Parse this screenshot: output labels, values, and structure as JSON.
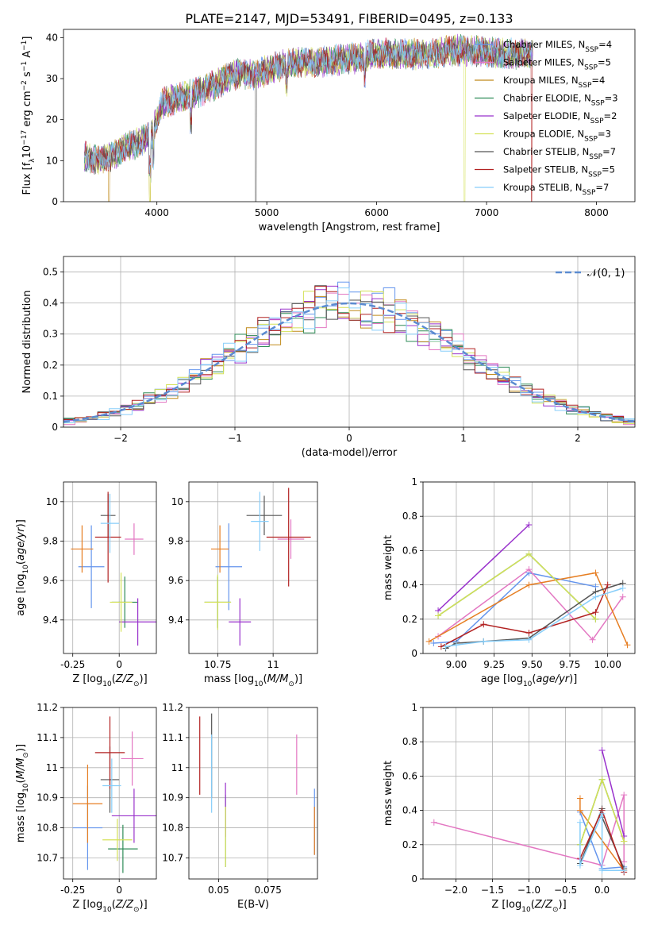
{
  "title": "PLATE=2147, MJD=53491, FIBERID=0495, z=0.133",
  "legend_entries": [
    {
      "label": "Chabrier MILES, N",
      "sub": "SSP",
      "suffix": "=4",
      "color": "#6495ed"
    },
    {
      "label": "Salpeter MILES, N",
      "sub": "SSP",
      "suffix": "=5",
      "color": "#e377c2"
    },
    {
      "label": "Kroupa MILES, N",
      "sub": "SSP",
      "suffix": "=4",
      "color": "#c08a1a"
    },
    {
      "label": "Chabrier ELODIE, N",
      "sub": "SSP",
      "suffix": "=3",
      "color": "#2e8b57"
    },
    {
      "label": "Salpeter ELODIE, N",
      "sub": "SSP",
      "suffix": "=2",
      "color": "#9932cc"
    },
    {
      "label": "Kroupa ELODIE, N",
      "sub": "SSP",
      "suffix": "=3",
      "color": "#d4e157"
    },
    {
      "label": "Chabrier STELIB, N",
      "sub": "SSP",
      "suffix": "=7",
      "color": "#555555"
    },
    {
      "label": "Salpeter STELIB, N",
      "sub": "SSP",
      "suffix": "=5",
      "color": "#b22222"
    },
    {
      "label": "Kroupa STELIB, N",
      "sub": "SSP",
      "suffix": "=7",
      "color": "#87cefa"
    }
  ],
  "normal_label": "𝒩(0, 1)",
  "chart_data": [
    {
      "id": "spectrum",
      "type": "line",
      "title": "PLATE=2147, MJD=53491, FIBERID=0495, z=0.133",
      "xlabel": "wavelength [Angstrom, rest frame]",
      "ylabel": "Flux [f",
      "xlim": [
        3150,
        8350
      ],
      "ylim": [
        0,
        42
      ],
      "xticks": [
        4000,
        5000,
        6000,
        7000,
        8000
      ],
      "yticks": [
        0,
        10,
        20,
        30,
        40
      ],
      "continuum": [
        [
          3340,
          11
        ],
        [
          3500,
          10
        ],
        [
          3700,
          13
        ],
        [
          3800,
          14
        ],
        [
          3950,
          16
        ],
        [
          4050,
          24
        ],
        [
          4300,
          26
        ],
        [
          4500,
          28
        ],
        [
          4700,
          31
        ],
        [
          4900,
          31
        ],
        [
          5100,
          33
        ],
        [
          5300,
          34
        ],
        [
          5500,
          34
        ],
        [
          5800,
          35
        ],
        [
          6000,
          36
        ],
        [
          6200,
          36
        ],
        [
          6500,
          36
        ],
        [
          6700,
          37
        ],
        [
          7000,
          36.5
        ],
        [
          7200,
          36
        ],
        [
          7400,
          36
        ]
      ],
      "drops": [
        {
          "series": "Kroupa MILES",
          "wavelength": [
            3565,
            3935
          ]
        },
        {
          "series": "Kroupa ELODIE",
          "wavelength": [
            3935,
            6800
          ]
        },
        {
          "series": "Salpeter STELIB",
          "wavelength": [
            7410
          ]
        },
        {
          "series": "Chabrier STELIB",
          "wavelength": [
            4900
          ]
        }
      ]
    },
    {
      "id": "residuals",
      "type": "histogram",
      "xlabel": "(data-model)/error",
      "ylabel": "Normed distribution",
      "xlim": [
        -2.5,
        2.5
      ],
      "ylim": [
        0,
        0.55
      ],
      "xticks": [
        -2,
        -1,
        0,
        1,
        2
      ],
      "yticks": [
        0.0,
        0.1,
        0.2,
        0.3,
        0.4,
        0.5
      ],
      "bin_width": 0.1,
      "series": [
        {
          "name": "N(0,1)",
          "type": "gaussian",
          "mean": 0,
          "sigma": 1
        }
      ]
    },
    {
      "id": "age_vs_Z",
      "type": "errorbar",
      "xlabel": "Z [log",
      "ylabel": "age  [log",
      "xlim": [
        -0.3,
        0.2
      ],
      "ylim": [
        9.23,
        10.1
      ],
      "xticks": [
        -0.25,
        0.0
      ],
      "yticks": [
        9.4,
        9.6,
        9.8,
        10.0
      ],
      "points": [
        {
          "x": -0.15,
          "y": 9.67,
          "xerr": 0.07,
          "yerr": 0.21,
          "color": "#6495ed"
        },
        {
          "x": 0.08,
          "y": 9.81,
          "xerr": 0.05,
          "yerr": 0.08,
          "color": "#e377c2"
        },
        {
          "x": -0.2,
          "y": 9.76,
          "xerr": 0.06,
          "yerr": 0.12,
          "color": "#e67e22"
        },
        {
          "x": 0.03,
          "y": 9.49,
          "xerr": 0.07,
          "yerr": 0.13,
          "color": "#2e8b57"
        },
        {
          "x": 0.1,
          "y": 9.39,
          "xerr": 0.1,
          "yerr": 0.12,
          "color": "#9932cc"
        },
        {
          "x": 0.01,
          "y": 9.49,
          "xerr": 0.06,
          "yerr": 0.15,
          "color": "#d4e157"
        },
        {
          "x": -0.06,
          "y": 9.93,
          "xerr": 0.04,
          "yerr": 0.11,
          "color": "#555555"
        },
        {
          "x": -0.06,
          "y": 9.82,
          "xerr": 0.07,
          "yerr": 0.23,
          "color": "#b22222"
        },
        {
          "x": -0.05,
          "y": 9.89,
          "xerr": 0.05,
          "yerr": 0.15,
          "color": "#87cefa"
        }
      ]
    },
    {
      "id": "age_vs_mass",
      "type": "errorbar",
      "xlabel": "mass [log",
      "ylabel": "",
      "xlim": [
        10.62,
        11.2
      ],
      "ylim": [
        9.23,
        10.1
      ],
      "xticks": [
        10.75,
        11.0
      ],
      "yticks": [
        9.4,
        9.6,
        9.8,
        10.0
      ],
      "points": [
        {
          "x": 10.8,
          "y": 9.67,
          "xerr": 0.06,
          "yerr": 0.22,
          "color": "#6495ed"
        },
        {
          "x": 11.08,
          "y": 9.81,
          "xerr": 0.06,
          "yerr": 0.1,
          "color": "#e377c2"
        },
        {
          "x": 10.76,
          "y": 9.76,
          "xerr": 0.04,
          "yerr": 0.12,
          "color": "#e67e22"
        },
        {
          "x": 10.75,
          "y": 9.49,
          "xerr": 0.06,
          "yerr": 0.13,
          "color": "#2e8b57"
        },
        {
          "x": 10.85,
          "y": 9.39,
          "xerr": 0.05,
          "yerr": 0.12,
          "color": "#9932cc"
        },
        {
          "x": 10.75,
          "y": 9.49,
          "xerr": 0.06,
          "yerr": 0.14,
          "color": "#d4e157"
        },
        {
          "x": 10.96,
          "y": 9.93,
          "xerr": 0.08,
          "yerr": 0.1,
          "color": "#555555"
        },
        {
          "x": 11.07,
          "y": 9.82,
          "xerr": 0.1,
          "yerr": 0.25,
          "color": "#b22222"
        },
        {
          "x": 10.94,
          "y": 9.9,
          "xerr": 0.04,
          "yerr": 0.15,
          "color": "#87cefa"
        }
      ]
    },
    {
      "id": "weight_vs_age",
      "type": "line",
      "xlabel": "age  [log",
      "ylabel": "mass weight",
      "xlim": [
        8.78,
        10.18
      ],
      "ylim": [
        0,
        1
      ],
      "xticks": [
        9.0,
        9.25,
        9.5,
        9.75,
        10.0
      ],
      "yticks": [
        0.0,
        0.2,
        0.4,
        0.6,
        0.8,
        1.0
      ],
      "series": [
        {
          "name": "Chabrier MILES",
          "color": "#6495ed",
          "x": [
            8.85,
            9.0,
            9.48,
            9.92
          ],
          "y": [
            0.06,
            0.07,
            0.47,
            0.39
          ]
        },
        {
          "name": "Salpeter MILES",
          "color": "#e377c2",
          "x": [
            8.88,
            9.48,
            9.9,
            10.1
          ],
          "y": [
            0.1,
            0.49,
            0.08,
            0.33
          ]
        },
        {
          "name": "Kroupa MILES",
          "color": "#e67e22",
          "x": [
            8.82,
            9.48,
            9.92,
            10.13
          ],
          "y": [
            0.07,
            0.4,
            0.47,
            0.05
          ]
        },
        {
          "name": "Chabrier ELODIE",
          "color": "#2e8b57",
          "x": [
            8.88,
            9.48,
            9.92
          ],
          "y": [
            0.22,
            0.58,
            0.2
          ]
        },
        {
          "name": "Salpeter ELODIE",
          "color": "#9932cc",
          "x": [
            8.88,
            9.48
          ],
          "y": [
            0.25,
            0.75
          ]
        },
        {
          "name": "Kroupa ELODIE",
          "color": "#d4e157",
          "x": [
            8.88,
            9.48,
            9.92
          ],
          "y": [
            0.22,
            0.58,
            0.2
          ]
        },
        {
          "name": "Chabrier STELIB",
          "color": "#555555",
          "x": [
            8.93,
            9.0,
            9.18,
            9.48,
            9.92,
            10.1
          ],
          "y": [
            0.03,
            0.06,
            0.07,
            0.09,
            0.36,
            0.41
          ]
        },
        {
          "name": "Salpeter STELIB",
          "color": "#b22222",
          "x": [
            8.9,
            9.18,
            9.48,
            9.92,
            10.0
          ],
          "y": [
            0.04,
            0.17,
            0.12,
            0.24,
            0.4
          ]
        },
        {
          "name": "Kroupa STELIB",
          "color": "#87cefa",
          "x": [
            8.93,
            9.0,
            9.18,
            9.48,
            9.92,
            10.1
          ],
          "y": [
            0.04,
            0.05,
            0.07,
            0.08,
            0.33,
            0.38
          ]
        }
      ]
    },
    {
      "id": "mass_vs_Z",
      "type": "errorbar",
      "xlabel": "Z [log",
      "ylabel": "mass [log",
      "xlim": [
        -0.3,
        0.2
      ],
      "ylim": [
        10.63,
        11.2
      ],
      "xticks": [
        -0.25,
        0.0
      ],
      "yticks": [
        10.7,
        10.8,
        10.9,
        11.0,
        11.1,
        11.2
      ],
      "points": [
        {
          "x": -0.17,
          "y": 10.8,
          "xerr": 0.08,
          "yerr": 0.14,
          "color": "#6495ed"
        },
        {
          "x": 0.07,
          "y": 11.03,
          "xerr": 0.06,
          "yerr": 0.09,
          "color": "#e377c2"
        },
        {
          "x": -0.17,
          "y": 10.88,
          "xerr": 0.08,
          "yerr": 0.13,
          "color": "#e67e22"
        },
        {
          "x": 0.02,
          "y": 10.73,
          "xerr": 0.08,
          "yerr": 0.08,
          "color": "#2e8b57"
        },
        {
          "x": 0.08,
          "y": 10.84,
          "xerr": 0.12,
          "yerr": 0.09,
          "color": "#9932cc"
        },
        {
          "x": -0.01,
          "y": 10.76,
          "xerr": 0.08,
          "yerr": 0.07,
          "color": "#d4e157"
        },
        {
          "x": -0.05,
          "y": 10.96,
          "xerr": 0.05,
          "yerr": 0.11,
          "color": "#555555"
        },
        {
          "x": -0.05,
          "y": 11.05,
          "xerr": 0.08,
          "yerr": 0.12,
          "color": "#b22222"
        },
        {
          "x": -0.04,
          "y": 10.94,
          "xerr": 0.05,
          "yerr": 0.09,
          "color": "#87cefa"
        }
      ]
    },
    {
      "id": "mass_vs_EBV",
      "type": "errorbar",
      "xlabel": "E(B-V)",
      "ylabel": "",
      "xlim": [
        0.035,
        0.1
      ],
      "ylim": [
        10.63,
        11.2
      ],
      "xticks": [
        0.05,
        0.075
      ],
      "yticks": [
        10.7,
        10.8,
        10.9,
        11.0,
        11.1,
        11.2
      ],
      "points": [
        {
          "x": 0.0985,
          "y": 10.82,
          "xerr": 0,
          "yerr": 0.11,
          "color": "#6495ed"
        },
        {
          "x": 0.0895,
          "y": 11.01,
          "xerr": 0,
          "yerr": 0.1,
          "color": "#e377c2"
        },
        {
          "x": 0.0985,
          "y": 10.79,
          "xerr": 0,
          "yerr": 0.08,
          "color": "#e67e22"
        },
        {
          "x": 0.0535,
          "y": 10.79,
          "xerr": 0,
          "yerr": 0.12,
          "color": "#2e8b57"
        },
        {
          "x": 0.0535,
          "y": 10.86,
          "xerr": 0,
          "yerr": 0.09,
          "color": "#9932cc"
        },
        {
          "x": 0.0535,
          "y": 10.77,
          "xerr": 0,
          "yerr": 0.1,
          "color": "#d4e157"
        },
        {
          "x": 0.0465,
          "y": 11.04,
          "xerr": 0,
          "yerr": 0.14,
          "color": "#555555"
        },
        {
          "x": 0.0405,
          "y": 11.04,
          "xerr": 0,
          "yerr": 0.13,
          "color": "#b22222"
        },
        {
          "x": 0.0465,
          "y": 10.98,
          "xerr": 0,
          "yerr": 0.13,
          "color": "#87cefa"
        }
      ]
    },
    {
      "id": "weight_vs_Z",
      "type": "line",
      "xlabel": "Z [log",
      "ylabel": "mass weight",
      "xlim": [
        -2.45,
        0.45
      ],
      "ylim": [
        0,
        1
      ],
      "xticks": [
        -2.0,
        -1.5,
        -1.0,
        -0.5,
        0.0
      ],
      "yticks": [
        0.0,
        0.2,
        0.4,
        0.6,
        0.8,
        1.0
      ],
      "series": [
        {
          "name": "Chabrier MILES",
          "color": "#6495ed",
          "x": [
            -0.3,
            0.0,
            0.3
          ],
          "y": [
            0.39,
            0.06,
            0.07
          ]
        },
        {
          "name": "Salpeter MILES",
          "color": "#e377c2",
          "x": [
            -2.3,
            0.0,
            0.3,
            0.3
          ],
          "y": [
            0.33,
            0.08,
            0.49,
            0.1
          ]
        },
        {
          "name": "Kroupa MILES",
          "color": "#e67e22",
          "x": [
            -0.3,
            -0.3,
            0.3
          ],
          "y": [
            0.47,
            0.4,
            0.05
          ]
        },
        {
          "name": "Chabrier ELODIE",
          "color": "#2e8b57",
          "x": [
            -0.3,
            0.0,
            0.3
          ],
          "y": [
            0.2,
            0.58,
            0.22
          ]
        },
        {
          "name": "Salpeter ELODIE",
          "color": "#9932cc",
          "x": [
            0.0,
            0.3
          ],
          "y": [
            0.75,
            0.25
          ]
        },
        {
          "name": "Kroupa ELODIE",
          "color": "#d4e157",
          "x": [
            -0.3,
            0.0,
            0.3
          ],
          "y": [
            0.2,
            0.58,
            0.22
          ]
        },
        {
          "name": "Chabrier STELIB",
          "color": "#555555",
          "x": [
            -0.3,
            0.0,
            0.0,
            0.3
          ],
          "y": [
            0.09,
            0.41,
            0.36,
            0.06
          ]
        },
        {
          "name": "Salpeter STELIB",
          "color": "#b22222",
          "x": [
            -0.3,
            0.0,
            0.3
          ],
          "y": [
            0.12,
            0.4,
            0.04
          ]
        },
        {
          "name": "Kroupa STELIB",
          "color": "#87cefa",
          "x": [
            -0.3,
            -0.3,
            0.0,
            0.0,
            0.3
          ],
          "y": [
            0.33,
            0.08,
            0.38,
            0.05,
            0.05
          ]
        }
      ]
    }
  ]
}
